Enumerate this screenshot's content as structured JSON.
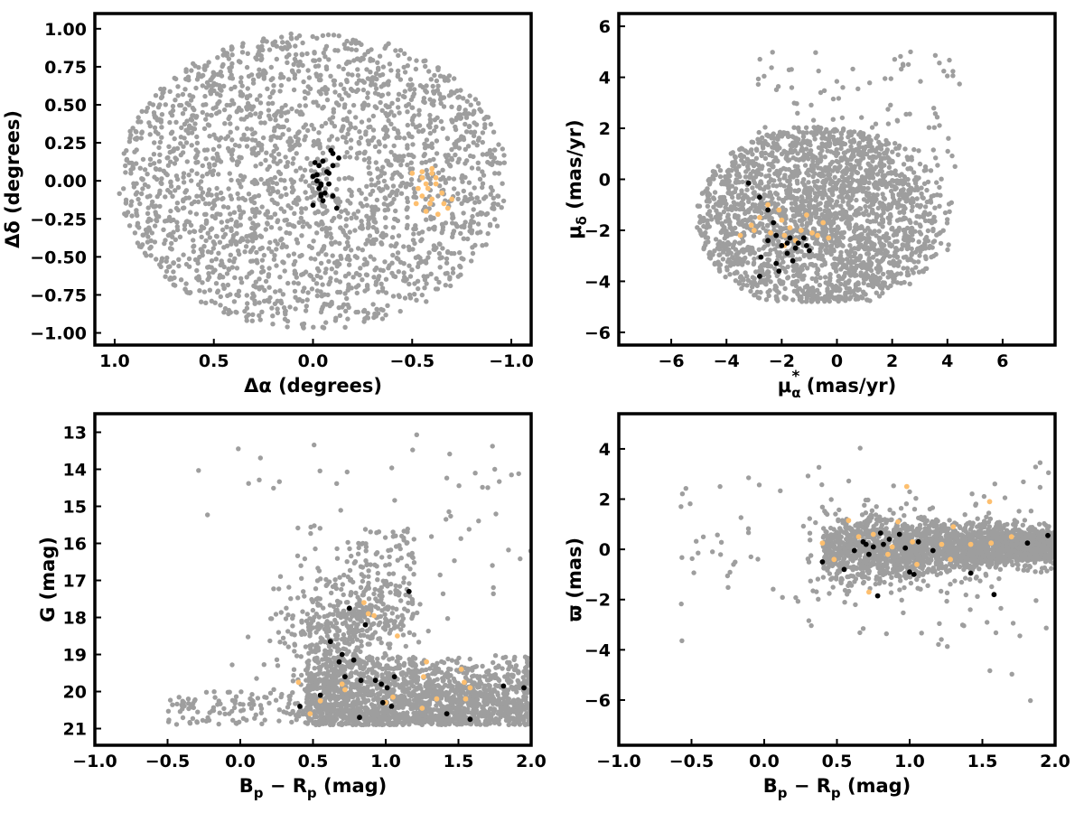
{
  "colors": {
    "field": "#9e9e9e",
    "cluster_a": "#000000",
    "cluster_b": "#fdbf6f"
  },
  "chart_data": [
    {
      "id": "sky",
      "type": "scatter",
      "xlabel": "Δα (degrees)",
      "ylabel": "Δδ (degrees)",
      "xlim": [
        1.1,
        -1.1
      ],
      "ylim": [
        -1.08,
        1.1
      ],
      "x_inverted": true,
      "xticks": [
        1.0,
        0.5,
        0.0,
        -0.5,
        -1.0
      ],
      "xtick_labels": [
        "1.0",
        "0.5",
        "0.0",
        "−0.5",
        "−1.0"
      ],
      "yticks": [
        1.0,
        0.75,
        0.5,
        0.25,
        0.0,
        -0.25,
        -0.5,
        -0.75,
        -1.0
      ],
      "ytick_labels": [
        "1.00",
        "0.75",
        "0.50",
        "0.25",
        "0.00",
        "−0.25",
        "−0.50",
        "−0.75",
        "−1.00"
      ],
      "series": [
        {
          "color": "#000000",
          "points": [
            [
              -0.07,
              0.06
            ],
            [
              -0.05,
              0.13
            ],
            [
              -0.03,
              0.1
            ],
            [
              -0.01,
              0.12
            ],
            [
              0.0,
              0.03
            ],
            [
              -0.02,
              0.04
            ],
            [
              -0.04,
              -0.03
            ],
            [
              -0.06,
              -0.08
            ],
            [
              -0.04,
              -0.09
            ],
            [
              -0.05,
              -0.13
            ],
            [
              0.0,
              -0.16
            ],
            [
              -0.03,
              -0.05
            ],
            [
              -0.08,
              -0.02
            ],
            [
              -0.09,
              0.2
            ],
            [
              -0.1,
              0.18
            ],
            [
              -0.1,
              0.1
            ],
            [
              -0.13,
              0.15
            ],
            [
              -0.04,
              -0.1
            ],
            [
              -0.1,
              -0.1
            ],
            [
              -0.12,
              -0.18
            ],
            [
              -0.04,
              -0.02
            ],
            [
              -0.08,
              0.05
            ],
            [
              -0.02,
              0.0
            ]
          ]
        },
        {
          "color": "#fdbf6f",
          "points": [
            [
              -0.5,
              0.05
            ],
            [
              -0.55,
              0.02
            ],
            [
              -0.57,
              -0.02
            ],
            [
              -0.6,
              0.05
            ],
            [
              -0.58,
              -0.05
            ],
            [
              -0.62,
              -0.02
            ],
            [
              -0.55,
              -0.1
            ],
            [
              -0.6,
              -0.12
            ],
            [
              -0.65,
              -0.08
            ],
            [
              -0.7,
              -0.12
            ],
            [
              -0.68,
              -0.18
            ],
            [
              -0.63,
              -0.22
            ],
            [
              -0.57,
              -0.2
            ],
            [
              -0.53,
              -0.05
            ],
            [
              -0.6,
              0.08
            ],
            [
              -0.55,
              0.06
            ],
            [
              -0.66,
              -0.15
            ],
            [
              -0.52,
              -0.15
            ],
            [
              -0.59,
              -0.15
            ],
            [
              -0.62,
              0.02
            ]
          ]
        }
      ]
    },
    {
      "id": "pm",
      "type": "scatter",
      "xlabel": "μα* (mas/yr)",
      "ylabel": "μδ (mas/yr)",
      "xlim": [
        -7.9,
        7.9
      ],
      "ylim": [
        -6.5,
        6.5
      ],
      "xticks": [
        -6,
        -4,
        -2,
        0,
        2,
        4,
        6
      ],
      "xtick_labels": [
        "−6",
        "−4",
        "−2",
        "0",
        "2",
        "4",
        "6"
      ],
      "yticks": [
        6,
        4,
        2,
        0,
        -2,
        -4,
        -6
      ],
      "ytick_labels": [
        "6",
        "4",
        "2",
        "0",
        "−2",
        "−4",
        "−6"
      ],
      "series": [
        {
          "color": "#000000",
          "points": [
            [
              -3.2,
              -0.15
            ],
            [
              -2.8,
              -0.7
            ],
            [
              -2.5,
              -1.2
            ],
            [
              -2.3,
              -1.7
            ],
            [
              -2.5,
              -2.4
            ],
            [
              -2.2,
              -2.2
            ],
            [
              -2.0,
              -2.6
            ],
            [
              -1.8,
              -2.5
            ],
            [
              -1.5,
              -2.7
            ],
            [
              -1.2,
              -2.3
            ],
            [
              -1.0,
              -2.8
            ],
            [
              -1.4,
              -2.5
            ],
            [
              -1.6,
              -3.2
            ],
            [
              -2.1,
              -3.6
            ],
            [
              -2.8,
              -3.8
            ],
            [
              -2.75,
              -3.05
            ],
            [
              -1.8,
              -2.9
            ],
            [
              -1.1,
              -2.6
            ],
            [
              -2.2,
              -3.3
            ],
            [
              -1.7,
              -2.3
            ]
          ]
        },
        {
          "color": "#fdbf6f",
          "points": [
            [
              -3.1,
              -1.8
            ],
            [
              -2.8,
              -1.5
            ],
            [
              -2.5,
              -1.0
            ],
            [
              -2.0,
              -1.6
            ],
            [
              -1.9,
              -2.2
            ],
            [
              -1.5,
              -2.4
            ],
            [
              -1.3,
              -2.0
            ],
            [
              -0.9,
              -2.1
            ],
            [
              -0.5,
              -1.7
            ],
            [
              -0.3,
              -2.3
            ],
            [
              -0.7,
              -2.2
            ],
            [
              -1.1,
              -1.4
            ],
            [
              -3.5,
              -2.2
            ],
            [
              -2.4,
              -2.1
            ],
            [
              -1.9,
              -2.6
            ],
            [
              -1.7,
              -1.9
            ],
            [
              -3.0,
              -2.0
            ],
            [
              -2.1,
              -1.2
            ]
          ]
        }
      ]
    },
    {
      "id": "cmd",
      "type": "scatter",
      "xlabel": "Bp − Rp (mag)",
      "ylabel": "G (mag)",
      "xlim": [
        -1.0,
        2.0
      ],
      "ylim": [
        21.45,
        12.5
      ],
      "y_inverted": true,
      "xticks": [
        -1.0,
        -0.5,
        0.0,
        0.5,
        1.0,
        1.5,
        2.0
      ],
      "xtick_labels": [
        "−1.0",
        "−0.5",
        "0.0",
        "0.5",
        "1.0",
        "1.5",
        "2.0"
      ],
      "yticks": [
        21,
        20,
        19,
        18,
        17,
        16,
        15,
        14,
        13
      ],
      "ytick_labels": [
        "21",
        "20",
        "19",
        "18",
        "17",
        "16",
        "15",
        "14",
        "13"
      ],
      "series": [
        {
          "color": "#000000",
          "points": [
            [
              0.41,
              20.4
            ],
            [
              0.55,
              20.1
            ],
            [
              0.62,
              18.65
            ],
            [
              0.68,
              19.2
            ],
            [
              0.7,
              19.0
            ],
            [
              0.72,
              19.6
            ],
            [
              0.75,
              17.75
            ],
            [
              0.78,
              19.15
            ],
            [
              0.82,
              20.7
            ],
            [
              0.83,
              19.7
            ],
            [
              0.86,
              18.2
            ],
            [
              0.93,
              19.7
            ],
            [
              0.97,
              19.8
            ],
            [
              0.98,
              20.3
            ],
            [
              1.01,
              19.9
            ],
            [
              1.04,
              20.4
            ],
            [
              1.06,
              19.6
            ],
            [
              1.16,
              17.3
            ],
            [
              1.42,
              20.6
            ],
            [
              1.58,
              20.75
            ],
            [
              1.81,
              19.85
            ],
            [
              1.95,
              19.9
            ]
          ]
        },
        {
          "color": "#fdbf6f",
          "points": [
            [
              0.4,
              19.75
            ],
            [
              0.48,
              20.6
            ],
            [
              0.55,
              20.25
            ],
            [
              0.7,
              19.8
            ],
            [
              0.72,
              19.95
            ],
            [
              0.85,
              17.6
            ],
            [
              0.88,
              17.9
            ],
            [
              0.92,
              17.95
            ],
            [
              1.0,
              20.3
            ],
            [
              1.05,
              20.15
            ],
            [
              1.08,
              18.5
            ],
            [
              1.25,
              20.45
            ],
            [
              1.26,
              19.6
            ],
            [
              1.28,
              19.2
            ],
            [
              1.35,
              20.2
            ],
            [
              1.52,
              19.4
            ],
            [
              1.55,
              20.2
            ],
            [
              1.58,
              19.9
            ],
            [
              1.54,
              19.75
            ]
          ]
        }
      ]
    },
    {
      "id": "plx",
      "type": "scatter",
      "xlabel": "Bp − Rp (mag)",
      "ylabel": "ϖ (mas)",
      "xlim": [
        -1.0,
        2.0
      ],
      "ylim": [
        -7.8,
        5.4
      ],
      "xticks": [
        -1.0,
        -0.5,
        0.0,
        0.5,
        1.0,
        1.5,
        2.0
      ],
      "xtick_labels": [
        "−1.0",
        "−0.5",
        "0.0",
        "0.5",
        "1.0",
        "1.5",
        "2.0"
      ],
      "yticks": [
        4,
        2,
        0,
        -2,
        -4,
        -6
      ],
      "ytick_labels": [
        "4",
        "2",
        "0",
        "−2",
        "−4",
        "−6"
      ],
      "series": [
        {
          "color": "#000000",
          "points": [
            [
              0.4,
              -0.5
            ],
            [
              0.55,
              -0.8
            ],
            [
              0.62,
              -0.05
            ],
            [
              0.68,
              0.3
            ],
            [
              0.7,
              0.2
            ],
            [
              0.72,
              -0.2
            ],
            [
              0.75,
              0.1
            ],
            [
              0.78,
              -1.85
            ],
            [
              0.8,
              0.65
            ],
            [
              0.82,
              0.2
            ],
            [
              0.86,
              0.4
            ],
            [
              0.93,
              0.6
            ],
            [
              0.97,
              0.05
            ],
            [
              1.0,
              -0.9
            ],
            [
              1.03,
              -1.0
            ],
            [
              1.06,
              0.3
            ],
            [
              1.16,
              -0.05
            ],
            [
              1.42,
              -0.95
            ],
            [
              1.58,
              -1.8
            ],
            [
              1.81,
              0.25
            ],
            [
              1.95,
              0.55
            ]
          ]
        },
        {
          "color": "#fdbf6f",
          "points": [
            [
              0.4,
              0.25
            ],
            [
              0.48,
              -0.4
            ],
            [
              0.58,
              1.15
            ],
            [
              0.65,
              0.5
            ],
            [
              0.72,
              -1.7
            ],
            [
              0.75,
              0.6
            ],
            [
              0.85,
              -0.2
            ],
            [
              0.88,
              0.1
            ],
            [
              0.92,
              1.1
            ],
            [
              0.98,
              2.5
            ],
            [
              1.02,
              0.3
            ],
            [
              1.05,
              -0.6
            ],
            [
              1.22,
              0.2
            ],
            [
              1.28,
              -0.4
            ],
            [
              1.3,
              0.9
            ],
            [
              1.42,
              0.2
            ],
            [
              1.55,
              1.9
            ],
            [
              1.56,
              0.25
            ],
            [
              1.7,
              0.5
            ]
          ]
        }
      ]
    }
  ]
}
